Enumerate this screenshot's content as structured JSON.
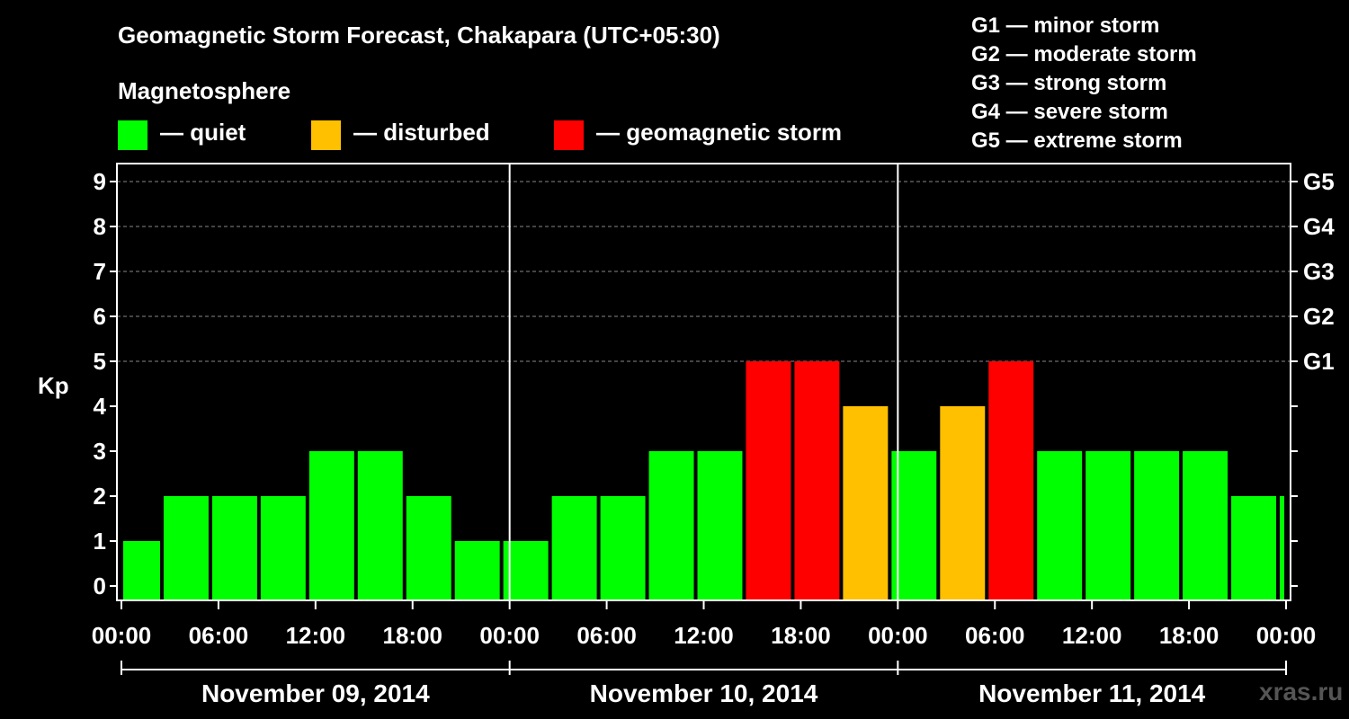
{
  "title": "Geomagnetic Storm Forecast, Chakapara (UTC+05:30)",
  "magnetosphere": {
    "title": "Magnetosphere",
    "legend": [
      {
        "label": "— quiet",
        "color": "#00ff00"
      },
      {
        "label": "— disturbed",
        "color": "#ffc000"
      },
      {
        "label": "— geomagnetic storm",
        "color": "#ff0000"
      }
    ]
  },
  "g_scale": [
    "G1 — minor storm",
    "G2 — moderate storm",
    "G3 — strong storm",
    "G4 — severe storm",
    "G5 — extreme storm"
  ],
  "watermark": "xras.ru",
  "chart_data": {
    "type": "bar",
    "ylabel": "Kp",
    "ylim": [
      0,
      9
    ],
    "yticks": [
      "0",
      "1",
      "2",
      "3",
      "4",
      "5",
      "6",
      "7",
      "8",
      "9"
    ],
    "right_ticks": [
      {
        "kp": 5,
        "label": "G1"
      },
      {
        "kp": 6,
        "label": "G2"
      },
      {
        "kp": 7,
        "label": "G3"
      },
      {
        "kp": 8,
        "label": "G4"
      },
      {
        "kp": 9,
        "label": "G5"
      }
    ],
    "xticks": [
      "00:00",
      "06:00",
      "12:00",
      "18:00",
      "00:00",
      "06:00",
      "12:00",
      "18:00",
      "00:00",
      "06:00",
      "12:00",
      "18:00",
      "00:00"
    ],
    "days": [
      "November 09, 2014",
      "November 10, 2014",
      "November 11, 2014"
    ],
    "x_range_hours": [
      0,
      72
    ],
    "gridlines": "dashed at Kp 5-9",
    "bars": [
      {
        "start": 0,
        "end": 2.5,
        "kp": 1,
        "color": "#00ff00"
      },
      {
        "start": 2.5,
        "end": 5.5,
        "kp": 2,
        "color": "#00ff00"
      },
      {
        "start": 5.5,
        "end": 8.5,
        "kp": 2,
        "color": "#00ff00"
      },
      {
        "start": 8.5,
        "end": 11.5,
        "kp": 2,
        "color": "#00ff00"
      },
      {
        "start": 11.5,
        "end": 14.5,
        "kp": 3,
        "color": "#00ff00"
      },
      {
        "start": 14.5,
        "end": 17.5,
        "kp": 3,
        "color": "#00ff00"
      },
      {
        "start": 17.5,
        "end": 20.5,
        "kp": 2,
        "color": "#00ff00"
      },
      {
        "start": 20.5,
        "end": 23.5,
        "kp": 1,
        "color": "#00ff00"
      },
      {
        "start": 23.5,
        "end": 26.5,
        "kp": 1,
        "color": "#00ff00"
      },
      {
        "start": 26.5,
        "end": 29.5,
        "kp": 2,
        "color": "#00ff00"
      },
      {
        "start": 29.5,
        "end": 32.5,
        "kp": 2,
        "color": "#00ff00"
      },
      {
        "start": 32.5,
        "end": 35.5,
        "kp": 3,
        "color": "#00ff00"
      },
      {
        "start": 35.5,
        "end": 38.5,
        "kp": 3,
        "color": "#00ff00"
      },
      {
        "start": 38.5,
        "end": 41.5,
        "kp": 5,
        "color": "#ff0000"
      },
      {
        "start": 41.5,
        "end": 44.5,
        "kp": 5,
        "color": "#ff0000"
      },
      {
        "start": 44.5,
        "end": 47.5,
        "kp": 4,
        "color": "#ffc000"
      },
      {
        "start": 47.5,
        "end": 50.5,
        "kp": 3,
        "color": "#00ff00"
      },
      {
        "start": 50.5,
        "end": 53.5,
        "kp": 4,
        "color": "#ffc000"
      },
      {
        "start": 53.5,
        "end": 56.5,
        "kp": 5,
        "color": "#ff0000"
      },
      {
        "start": 56.5,
        "end": 59.5,
        "kp": 3,
        "color": "#00ff00"
      },
      {
        "start": 59.5,
        "end": 62.5,
        "kp": 3,
        "color": "#00ff00"
      },
      {
        "start": 62.5,
        "end": 65.5,
        "kp": 3,
        "color": "#00ff00"
      },
      {
        "start": 65.5,
        "end": 68.5,
        "kp": 3,
        "color": "#00ff00"
      },
      {
        "start": 68.5,
        "end": 71.5,
        "kp": 2,
        "color": "#00ff00"
      },
      {
        "start": 71.5,
        "end": 72,
        "kp": 2,
        "color": "#00ff00"
      }
    ]
  }
}
